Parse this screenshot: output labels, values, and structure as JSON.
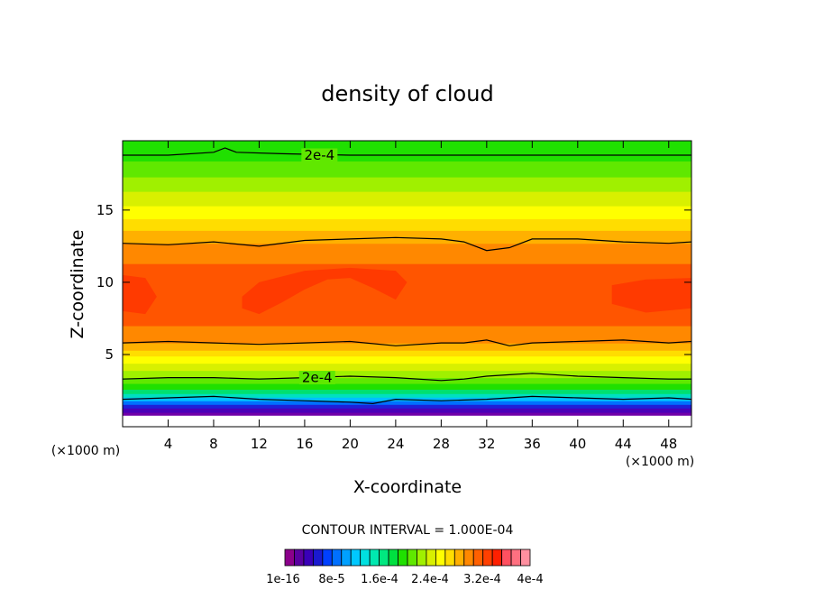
{
  "chart_data": {
    "type": "contour",
    "title": "density of cloud",
    "xlabel": "X-coordinate",
    "ylabel": "Z-coordinate",
    "x_unit": "(×1000 m)",
    "z_unit": "(×1000 m)",
    "xlim": [
      0,
      50
    ],
    "ylim": [
      0,
      19.8
    ],
    "x_ticks": [
      4,
      8,
      12,
      16,
      20,
      24,
      28,
      32,
      36,
      40,
      44,
      48
    ],
    "y_ticks": [
      5,
      10,
      15
    ],
    "contour_interval_text": "CONTOUR INTERVAL = 1.000E-04",
    "contour_label": "2e-4",
    "contour_labels": [
      {
        "text": "2e-4",
        "x": 17.3,
        "z": 18.8
      },
      {
        "text": "2e-4",
        "x": 17.1,
        "z": 3.4
      }
    ],
    "colorbar_tick_labels": [
      "1e-16",
      "8e-5",
      "1.6e-4",
      "2.4e-4",
      "3.2e-4",
      "4e-4"
    ],
    "colorbar_colors": [
      "#8B008B",
      "#5A00A0",
      "#3A00B8",
      "#1a1ad0",
      "#0040ff",
      "#0070ff",
      "#00a0ff",
      "#00c8ff",
      "#00e0e0",
      "#00e8b0",
      "#00e880",
      "#00e040",
      "#20e000",
      "#60e800",
      "#a0f000",
      "#d8f000",
      "#ffff00",
      "#ffdd00",
      "#ffb000",
      "#ff8800",
      "#ff6000",
      "#ff4000",
      "#ff2000",
      "#ff5060",
      "#ff7080",
      "#ff90a0"
    ],
    "profile_levels": [
      {
        "z": 0.8,
        "color": "#ffffff"
      },
      {
        "z": 1.0,
        "color": "#7000a8"
      },
      {
        "z": 1.3,
        "color": "#4a00b8"
      },
      {
        "z": 1.55,
        "color": "#2020d8"
      },
      {
        "z": 1.8,
        "color": "#0070ff"
      },
      {
        "z": 2.05,
        "color": "#00c0ff"
      },
      {
        "z": 2.3,
        "color": "#00e0c0"
      },
      {
        "z": 2.6,
        "color": "#00e070"
      },
      {
        "z": 3.0,
        "color": "#20e000"
      },
      {
        "z": 3.4,
        "color": "#60e800"
      },
      {
        "z": 3.9,
        "color": "#a0f000"
      },
      {
        "z": 4.4,
        "color": "#d8f000"
      },
      {
        "z": 4.9,
        "color": "#ffff00"
      },
      {
        "z": 5.3,
        "color": "#ffdd00"
      },
      {
        "z": 5.8,
        "color": "#ffb000"
      },
      {
        "z": 7.0,
        "color": "#ff8800"
      },
      {
        "z": 11.3,
        "color": "#ff5500"
      },
      {
        "z": 12.7,
        "color": "#ff8800"
      },
      {
        "z": 13.6,
        "color": "#ffb000"
      },
      {
        "z": 14.4,
        "color": "#ffdd00"
      },
      {
        "z": 15.3,
        "color": "#ffff00"
      },
      {
        "z": 16.3,
        "color": "#d8f000"
      },
      {
        "z": 17.3,
        "color": "#a0f000"
      },
      {
        "z": 18.4,
        "color": "#60e800"
      },
      {
        "z": 19.8,
        "color": "#20e000"
      }
    ],
    "contour_lines": [
      {
        "name": "upper",
        "x": [
          0,
          4,
          8,
          9,
          10,
          14,
          20,
          30,
          40,
          50
        ],
        "z": [
          18.8,
          18.8,
          19.0,
          19.3,
          19.0,
          18.9,
          18.8,
          18.8,
          18.8,
          18.8
        ]
      },
      {
        "name": "cloud-top",
        "x": [
          0,
          4,
          8,
          12,
          16,
          20,
          24,
          28,
          30,
          32,
          34,
          36,
          40,
          44,
          48,
          50
        ],
        "z": [
          12.7,
          12.6,
          12.8,
          12.5,
          12.9,
          13.0,
          13.1,
          13.0,
          12.8,
          12.2,
          12.4,
          13.0,
          13.0,
          12.8,
          12.7,
          12.8
        ]
      },
      {
        "name": "cloud-base",
        "x": [
          0,
          4,
          8,
          12,
          16,
          20,
          24,
          28,
          30,
          32,
          34,
          36,
          40,
          44,
          48,
          50
        ],
        "z": [
          5.8,
          5.9,
          5.8,
          5.7,
          5.8,
          5.9,
          5.6,
          5.8,
          5.8,
          6.0,
          5.6,
          5.8,
          5.9,
          6.0,
          5.8,
          5.9
        ]
      },
      {
        "name": "lower",
        "x": [
          0,
          4,
          8,
          12,
          16,
          20,
          24,
          28,
          30,
          32,
          34,
          36,
          40,
          44,
          48,
          50
        ],
        "z": [
          3.3,
          3.4,
          3.4,
          3.3,
          3.4,
          3.5,
          3.4,
          3.2,
          3.3,
          3.5,
          3.6,
          3.7,
          3.5,
          3.4,
          3.3,
          3.3
        ]
      },
      {
        "name": "bottom",
        "x": [
          0,
          4,
          8,
          12,
          16,
          20,
          22,
          24,
          28,
          32,
          36,
          40,
          44,
          48,
          50
        ],
        "z": [
          1.9,
          2.0,
          2.1,
          1.9,
          1.8,
          1.7,
          1.6,
          1.9,
          1.8,
          1.9,
          2.1,
          2.0,
          1.9,
          2.0,
          1.9
        ]
      }
    ],
    "core_regions": [
      {
        "name": "core-left",
        "x": [
          0,
          2,
          3,
          2,
          0
        ],
        "z": [
          10.5,
          10.3,
          9,
          7.8,
          8
        ]
      },
      {
        "name": "core-center",
        "x": [
          10.5,
          12,
          16,
          20,
          22,
          24,
          25,
          24,
          22,
          20,
          18,
          16,
          14,
          12,
          10.5
        ],
        "z": [
          9,
          10,
          10.8,
          11,
          10.9,
          10.8,
          10,
          8.8,
          9.6,
          10.3,
          10.2,
          9.5,
          8.6,
          7.8,
          8.2
        ]
      },
      {
        "name": "core-right",
        "x": [
          43,
          46,
          50,
          50,
          46,
          43
        ],
        "z": [
          9.8,
          10.2,
          10.3,
          8.2,
          7.9,
          8.5
        ]
      }
    ]
  }
}
